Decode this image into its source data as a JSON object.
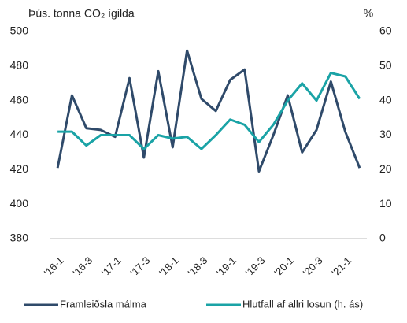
{
  "chart_data": {
    "type": "line",
    "y_label": "Þús. tonna CO₂ ígilda",
    "y2_label": "%",
    "categories": [
      "'16-1",
      null,
      "'16-3",
      null,
      "'17-1",
      null,
      "'17-3",
      null,
      "'18-1",
      null,
      "'18-3",
      null,
      "'19-1",
      null,
      "'19-3",
      null,
      "'20-1",
      null,
      "'20-3",
      null,
      "'21-1",
      null
    ],
    "series": [
      {
        "name": "Framleiðsla málma",
        "color": "#2f4a6a",
        "values": [
          421,
          463,
          444,
          443,
          439,
          473,
          427,
          477,
          433,
          489,
          461,
          454,
          472,
          478,
          419,
          440,
          463,
          430,
          443,
          471,
          442,
          421
        ]
      },
      {
        "name": "Hlutfall af allri losun (h. ás)",
        "color": "#1aa3a6",
        "axis": "y2",
        "values": [
          31,
          31,
          27,
          30,
          30,
          30,
          26,
          30,
          29,
          29.5,
          26,
          30,
          34.5,
          33,
          28,
          33,
          40,
          45,
          40,
          48,
          47,
          40.5
        ]
      }
    ],
    "ylim": [
      380,
      500
    ],
    "yticks": [
      380,
      400,
      420,
      440,
      460,
      480,
      500
    ],
    "y2lim": [
      0,
      60
    ],
    "y2ticks": [
      0,
      10,
      20,
      30,
      40,
      50,
      60
    ],
    "legend": "bottom"
  }
}
